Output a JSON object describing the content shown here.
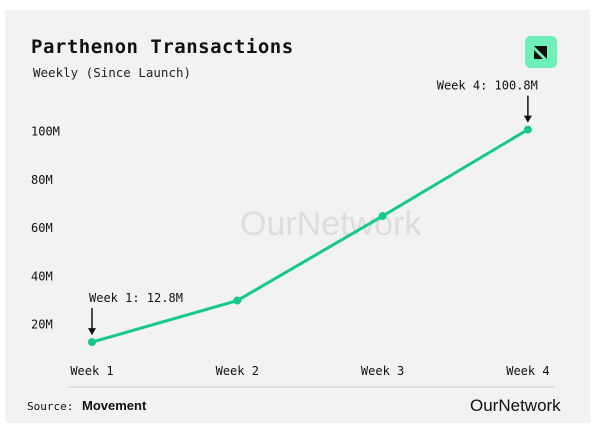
{
  "chart_data": {
    "type": "line",
    "title": "Parthenon Transactions",
    "subtitle": "Weekly (Since Launch)",
    "categories": [
      "Week 1",
      "Week 2",
      "Week 3",
      "Week 4"
    ],
    "values": [
      12.8,
      30,
      65,
      100.8
    ],
    "unit": "M",
    "yticks": [
      "20M",
      "40M",
      "60M",
      "80M",
      "100M"
    ],
    "ytick_values": [
      20,
      40,
      60,
      80,
      100
    ],
    "ylim": [
      0,
      110
    ],
    "grid": false,
    "line_color": "#14c98a",
    "annotations": [
      {
        "text": "Week 1: 12.8M",
        "index": 0
      },
      {
        "text": "Week 4: 100.8M",
        "index": 3
      }
    ]
  },
  "footer": {
    "source_label": "Source:",
    "source_name": "Movement",
    "brand": "OurNetwork"
  },
  "watermark": "OurNetwork"
}
